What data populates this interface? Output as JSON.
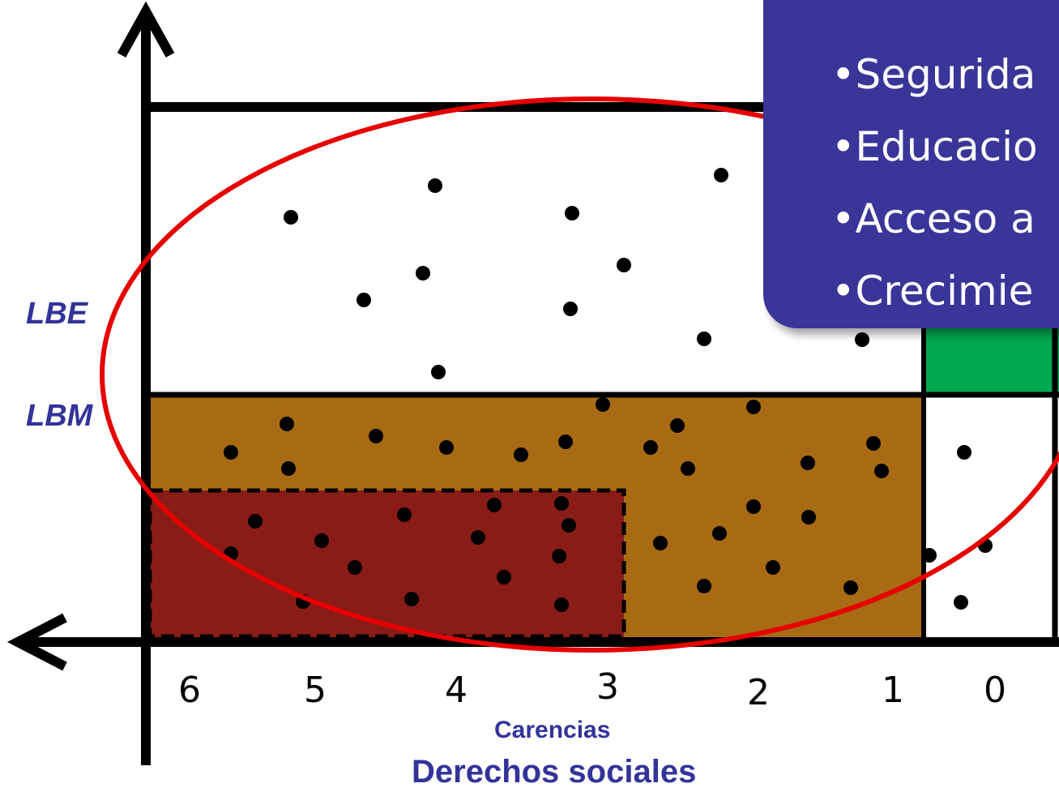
{
  "axis": {
    "x_title": "Carencias",
    "x_subtitle": "Derechos sociales",
    "x_ticks": [
      "6",
      "5",
      "4",
      "3",
      "2",
      "1",
      "0"
    ],
    "y_labels": {
      "lbe": "LBE",
      "lbm": "LBM"
    }
  },
  "callout": {
    "bullet": "•",
    "items": [
      "Segurida",
      "Educacio",
      "Acceso a",
      "Crecimie"
    ]
  },
  "colors": {
    "moderate_poverty_zone": "#a86b14",
    "extreme_poverty_zone": "#8a1c18",
    "vulnerable_income_zone": "#00a84f",
    "ellipse": "#e60000",
    "callout_bg": "#3a3598",
    "label_text": "#33339a"
  },
  "icons": [
    "arrow-up-icon",
    "arrow-left-icon"
  ]
}
